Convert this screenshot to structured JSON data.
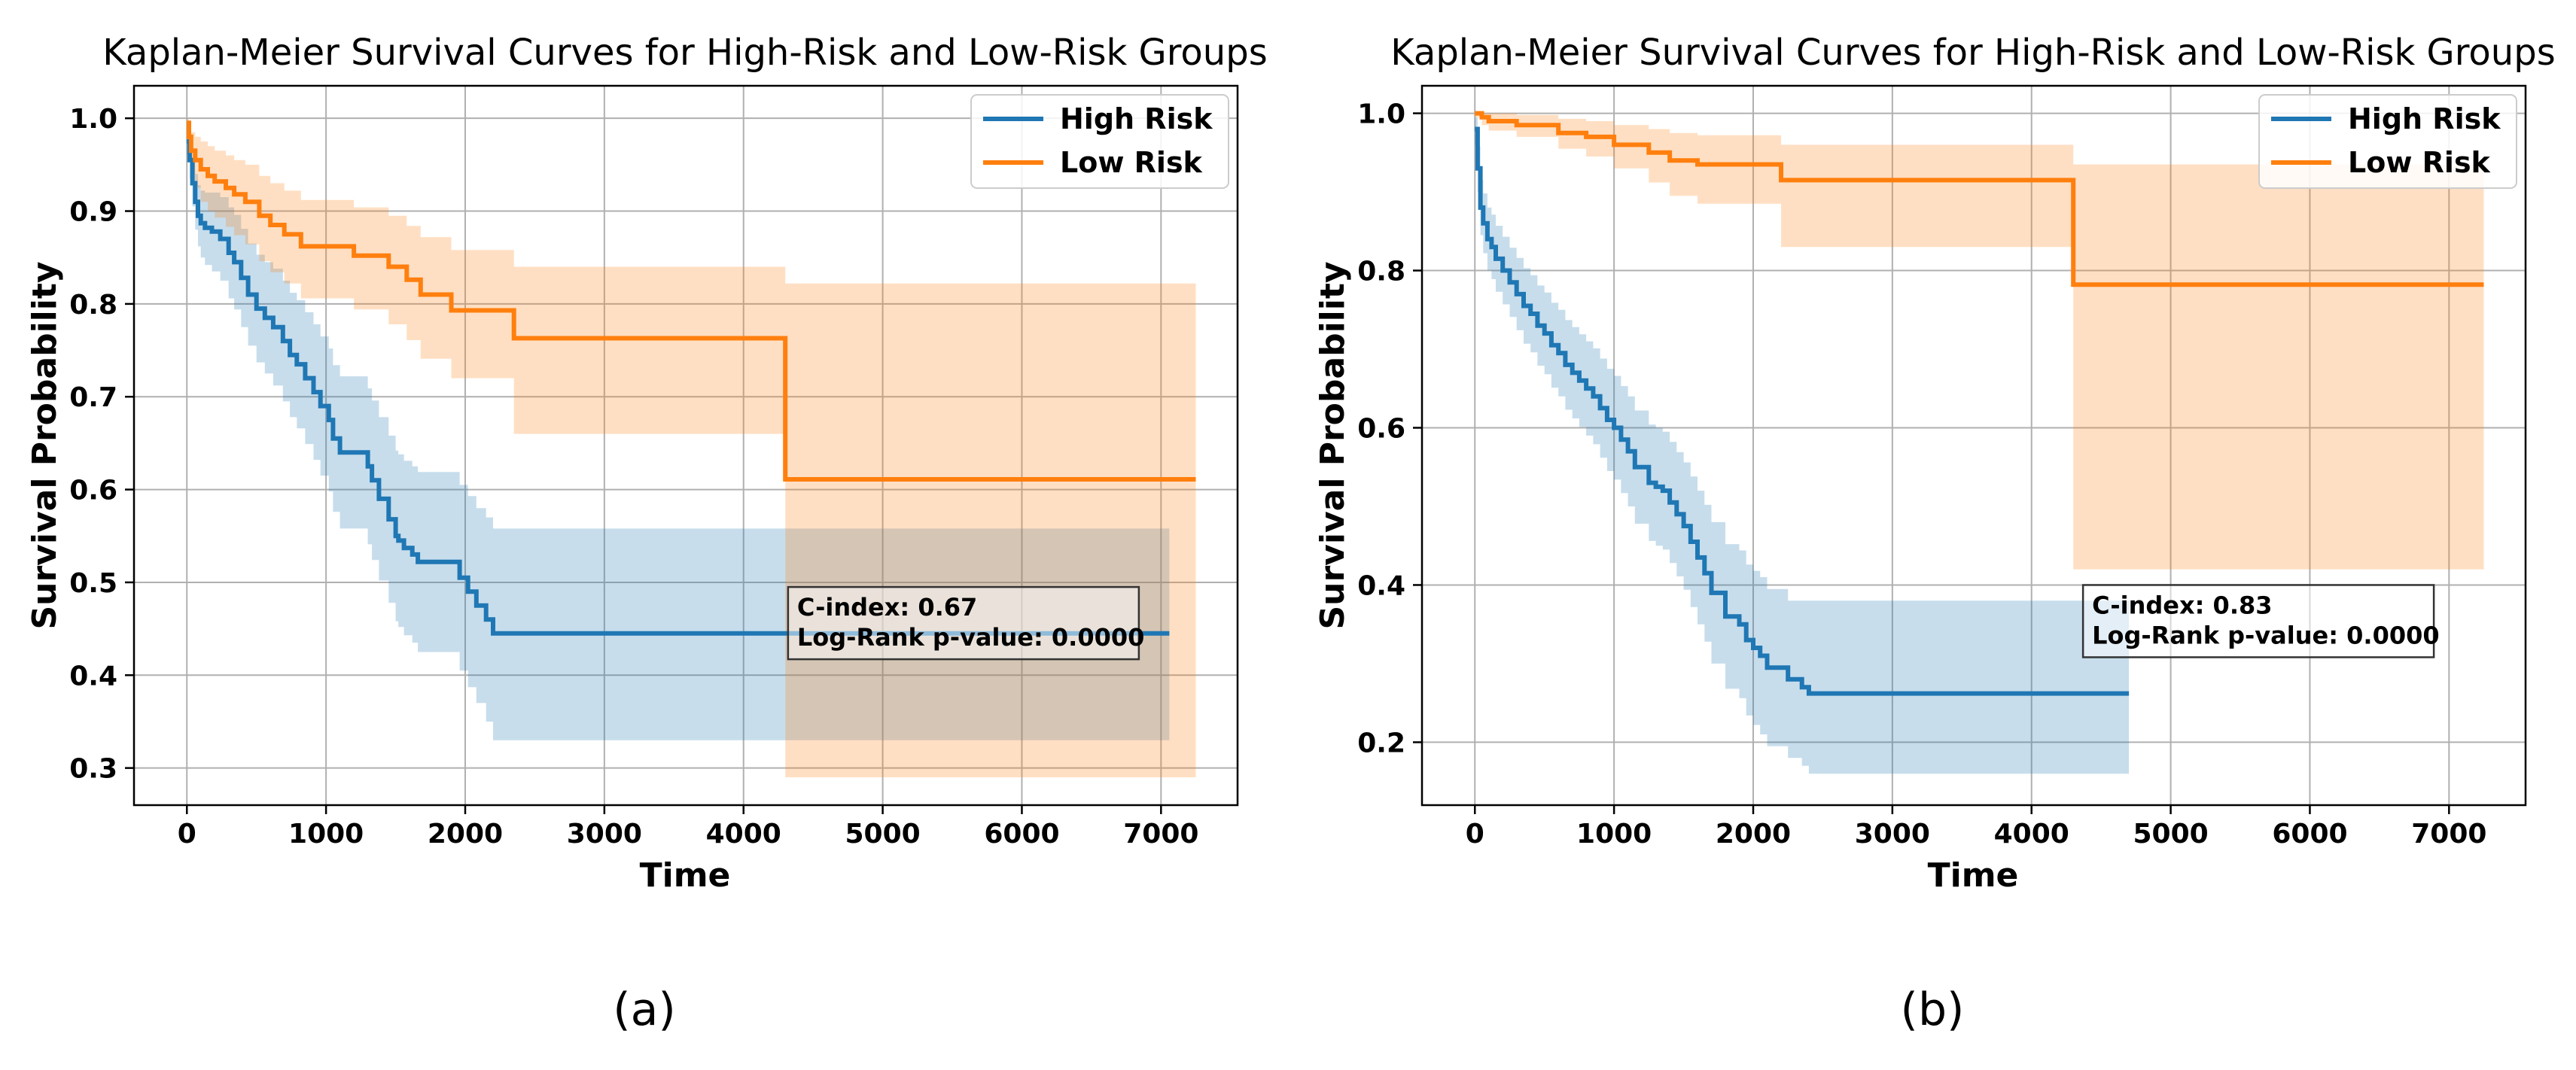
{
  "colors": {
    "high_risk": "#1f77b4",
    "low_risk": "#ff7f0e",
    "grid": "#b0b0b0"
  },
  "chart_data": [
    {
      "type": "line",
      "caption": "(a)",
      "title": "Kaplan-Meier Survival Curves for High-Risk and Low-Risk Groups",
      "xlabel": "Time",
      "ylabel": "Survival Probability",
      "xlim": [
        -380,
        7550
      ],
      "ylim": [
        0.26,
        1.035
      ],
      "xticks": [
        0,
        1000,
        2000,
        3000,
        4000,
        5000,
        6000,
        7000
      ],
      "xtick_labels": [
        "0",
        "1000",
        "2000",
        "3000",
        "4000",
        "5000",
        "6000",
        "7000"
      ],
      "yticks": [
        0.3,
        0.4,
        0.5,
        0.6,
        0.7,
        0.8,
        0.9,
        1.0
      ],
      "ytick_labels": [
        "0.3",
        "0.4",
        "0.5",
        "0.6",
        "0.7",
        "0.8",
        "0.9",
        "1.0"
      ],
      "grid": true,
      "legend_position": "top-right",
      "annotation_position": "center-right",
      "annotation": {
        "cindex": "C-index: 0.67",
        "pvalue": "Log-Rank p-value: 0.0000"
      },
      "series": [
        {
          "name": "High Risk",
          "key": "high",
          "x": [
            0,
            20,
            40,
            60,
            80,
            100,
            130,
            180,
            240,
            300,
            340,
            390,
            440,
            500,
            560,
            620,
            690,
            740,
            790,
            850,
            910,
            960,
            1020,
            1050,
            1100,
            1150,
            1300,
            1330,
            1380,
            1450,
            1500,
            1520,
            1560,
            1620,
            1660,
            1720,
            1960,
            2020,
            2080,
            2150,
            2200,
            7060
          ],
          "y": [
            0.975,
            0.955,
            0.93,
            0.91,
            0.895,
            0.887,
            0.882,
            0.878,
            0.87,
            0.855,
            0.845,
            0.828,
            0.81,
            0.795,
            0.785,
            0.775,
            0.76,
            0.745,
            0.735,
            0.72,
            0.705,
            0.69,
            0.675,
            0.655,
            0.64,
            0.64,
            0.625,
            0.61,
            0.59,
            0.568,
            0.55,
            0.545,
            0.537,
            0.53,
            0.522,
            0.522,
            0.505,
            0.49,
            0.475,
            0.46,
            0.445,
            0.445
          ],
          "lower": [
            0.96,
            0.935,
            0.905,
            0.88,
            0.862,
            0.85,
            0.842,
            0.835,
            0.825,
            0.806,
            0.794,
            0.775,
            0.755,
            0.737,
            0.725,
            0.712,
            0.695,
            0.678,
            0.666,
            0.649,
            0.632,
            0.615,
            0.598,
            0.576,
            0.558,
            0.558,
            0.541,
            0.524,
            0.502,
            0.478,
            0.458,
            0.452,
            0.443,
            0.435,
            0.425,
            0.425,
            0.405,
            0.387,
            0.37,
            0.35,
            0.33,
            0.33
          ],
          "upper": [
            0.99,
            0.975,
            0.955,
            0.94,
            0.928,
            0.922,
            0.92,
            0.92,
            0.915,
            0.904,
            0.896,
            0.881,
            0.865,
            0.853,
            0.845,
            0.838,
            0.825,
            0.812,
            0.804,
            0.791,
            0.778,
            0.765,
            0.752,
            0.734,
            0.722,
            0.722,
            0.709,
            0.696,
            0.678,
            0.658,
            0.642,
            0.638,
            0.631,
            0.625,
            0.619,
            0.619,
            0.605,
            0.593,
            0.58,
            0.57,
            0.558,
            0.558
          ]
        },
        {
          "name": "Low Risk",
          "key": "low",
          "x": [
            0,
            15,
            30,
            60,
            100,
            150,
            200,
            280,
            340,
            420,
            520,
            600,
            700,
            820,
            1200,
            1450,
            1580,
            1680,
            1900,
            2350,
            4300,
            7250
          ],
          "y": [
            0.995,
            0.98,
            0.965,
            0.955,
            0.945,
            0.938,
            0.932,
            0.925,
            0.918,
            0.91,
            0.895,
            0.885,
            0.875,
            0.862,
            0.852,
            0.84,
            0.826,
            0.81,
            0.793,
            0.763,
            0.611,
            0.611
          ],
          "lower": [
            0.985,
            0.962,
            0.94,
            0.925,
            0.91,
            0.9,
            0.893,
            0.883,
            0.874,
            0.864,
            0.846,
            0.834,
            0.822,
            0.806,
            0.794,
            0.778,
            0.761,
            0.741,
            0.72,
            0.66,
            0.29,
            0.29
          ],
          "upper": [
            1.0,
            0.993,
            0.985,
            0.98,
            0.975,
            0.97,
            0.965,
            0.96,
            0.955,
            0.95,
            0.938,
            0.93,
            0.922,
            0.912,
            0.904,
            0.895,
            0.884,
            0.872,
            0.858,
            0.84,
            0.822,
            0.822
          ]
        }
      ]
    },
    {
      "type": "line",
      "caption": "(b)",
      "title": "Kaplan-Meier Survival Curves for High-Risk and Low-Risk Groups",
      "xlabel": "Time",
      "ylabel": "Survival Probability",
      "xlim": [
        -380,
        7550
      ],
      "ylim": [
        0.12,
        1.035
      ],
      "xticks": [
        0,
        1000,
        2000,
        3000,
        4000,
        5000,
        6000,
        7000
      ],
      "xtick_labels": [
        "0",
        "1000",
        "2000",
        "3000",
        "4000",
        "5000",
        "6000",
        "7000"
      ],
      "yticks": [
        0.2,
        0.4,
        0.6,
        0.8,
        1.0
      ],
      "ytick_labels": [
        "0.2",
        "0.4",
        "0.6",
        "0.8",
        "1.0"
      ],
      "grid": true,
      "legend_position": "top-right",
      "annotation_position": "center-right",
      "annotation": {
        "cindex": "C-index: 0.83",
        "pvalue": "Log-Rank p-value: 0.0000"
      },
      "series": [
        {
          "name": "High Risk",
          "key": "high",
          "x": [
            0,
            20,
            40,
            60,
            90,
            120,
            150,
            200,
            250,
            300,
            350,
            400,
            450,
            500,
            550,
            600,
            650,
            700,
            750,
            800,
            850,
            900,
            950,
            1000,
            1050,
            1100,
            1150,
            1250,
            1300,
            1350,
            1400,
            1450,
            1500,
            1550,
            1600,
            1650,
            1700,
            1800,
            1900,
            1950,
            2000,
            2050,
            2100,
            2200,
            2250,
            2350,
            2400,
            4700
          ],
          "y": [
            0.98,
            0.93,
            0.88,
            0.86,
            0.84,
            0.83,
            0.815,
            0.8,
            0.785,
            0.77,
            0.755,
            0.745,
            0.73,
            0.72,
            0.705,
            0.695,
            0.68,
            0.67,
            0.66,
            0.65,
            0.64,
            0.625,
            0.61,
            0.6,
            0.585,
            0.57,
            0.55,
            0.53,
            0.525,
            0.52,
            0.505,
            0.49,
            0.475,
            0.455,
            0.435,
            0.415,
            0.39,
            0.36,
            0.35,
            0.33,
            0.32,
            0.31,
            0.295,
            0.295,
            0.28,
            0.27,
            0.262,
            0.262
          ],
          "lower": [
            0.96,
            0.9,
            0.845,
            0.822,
            0.8,
            0.789,
            0.773,
            0.757,
            0.741,
            0.724,
            0.707,
            0.696,
            0.679,
            0.668,
            0.651,
            0.64,
            0.623,
            0.612,
            0.601,
            0.59,
            0.579,
            0.562,
            0.545,
            0.534,
            0.517,
            0.5,
            0.478,
            0.456,
            0.45,
            0.445,
            0.428,
            0.411,
            0.394,
            0.372,
            0.35,
            0.328,
            0.3,
            0.268,
            0.256,
            0.234,
            0.222,
            0.21,
            0.195,
            0.195,
            0.18,
            0.17,
            0.16,
            0.16
          ],
          "upper": [
            0.995,
            0.958,
            0.915,
            0.898,
            0.88,
            0.871,
            0.857,
            0.843,
            0.829,
            0.816,
            0.803,
            0.794,
            0.781,
            0.772,
            0.759,
            0.75,
            0.737,
            0.728,
            0.719,
            0.71,
            0.701,
            0.688,
            0.675,
            0.666,
            0.653,
            0.64,
            0.622,
            0.604,
            0.6,
            0.595,
            0.582,
            0.569,
            0.556,
            0.538,
            0.52,
            0.502,
            0.48,
            0.452,
            0.444,
            0.426,
            0.418,
            0.41,
            0.395,
            0.395,
            0.38,
            0.38,
            0.38,
            0.38
          ]
        },
        {
          "name": "Low Risk",
          "key": "low",
          "x": [
            0,
            50,
            100,
            300,
            600,
            800,
            1000,
            1250,
            1400,
            1600,
            2200,
            4300,
            7250
          ],
          "y": [
            1.0,
            0.995,
            0.99,
            0.985,
            0.975,
            0.97,
            0.96,
            0.95,
            0.94,
            0.935,
            0.915,
            0.782,
            0.782
          ],
          "lower": [
            0.995,
            0.985,
            0.978,
            0.97,
            0.955,
            0.945,
            0.93,
            0.912,
            0.895,
            0.885,
            0.83,
            0.42,
            0.42
          ],
          "upper": [
            1.0,
            1.0,
            1.0,
            0.998,
            0.993,
            0.99,
            0.985,
            0.98,
            0.975,
            0.972,
            0.96,
            0.935,
            0.935
          ]
        }
      ]
    }
  ]
}
